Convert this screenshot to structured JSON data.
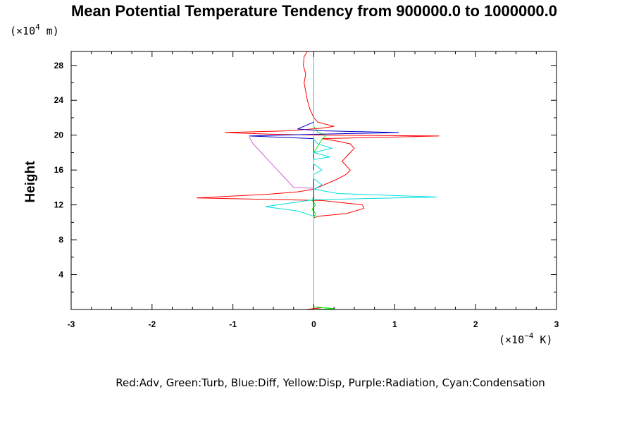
{
  "chart_data": {
    "type": "line",
    "title": "Mean Potential Temperature Tendency from 900000.0 to 1000000.0",
    "ylabel": "Height",
    "y_unit_prefix": "(×10",
    "y_unit_exp": "4",
    "y_unit_suffix": " m)",
    "x_unit_prefix": "(×10",
    "x_unit_exp": "−4",
    "x_unit_suffix": " K)",
    "xlim": [
      -3,
      3
    ],
    "ylim": [
      0,
      29.6
    ],
    "x_ticks": [
      -3,
      -2,
      -1,
      0,
      1,
      2,
      3
    ],
    "x_tick_labels": [
      "-3",
      "-2",
      "-1",
      "0",
      "1",
      "2",
      "3"
    ],
    "y_ticks": [
      4,
      8,
      12,
      16,
      20,
      24,
      28
    ],
    "y_tick_labels": [
      "4",
      "8",
      "12",
      "16",
      "20",
      "24",
      "28"
    ],
    "grid": false,
    "legend_text": "Red:Adv, Green:Turb, Blue:Diff, Yellow:Disp, Purple:Radiation, Cyan:Condensation",
    "series": [
      {
        "name": "Adv",
        "color": "#ff0000",
        "points": [
          [
            -0.1,
            0.0
          ],
          [
            0.1,
            0.2
          ],
          [
            0.0,
            0.3
          ],
          [
            0.0,
            10.5
          ],
          [
            0.05,
            10.7
          ],
          [
            0.4,
            11.0
          ],
          [
            0.62,
            11.6
          ],
          [
            0.6,
            12.0
          ],
          [
            0.3,
            12.3
          ],
          [
            0.1,
            12.5
          ],
          [
            -1.45,
            12.8
          ],
          [
            -0.6,
            13.2
          ],
          [
            -0.2,
            13.5
          ],
          [
            0.0,
            13.8
          ],
          [
            0.1,
            14.2
          ],
          [
            0.2,
            14.6
          ],
          [
            0.3,
            15.0
          ],
          [
            0.4,
            15.5
          ],
          [
            0.45,
            16.0
          ],
          [
            0.4,
            16.5
          ],
          [
            0.35,
            17.0
          ],
          [
            0.4,
            17.5
          ],
          [
            0.45,
            18.0
          ],
          [
            0.5,
            18.5
          ],
          [
            0.45,
            19.0
          ],
          [
            0.3,
            19.3
          ],
          [
            0.1,
            19.6
          ],
          [
            1.55,
            19.9
          ],
          [
            0.2,
            20.0
          ],
          [
            -0.5,
            20.1
          ],
          [
            -1.1,
            20.3
          ],
          [
            -0.3,
            20.5
          ],
          [
            0.1,
            20.8
          ],
          [
            0.25,
            21.0
          ],
          [
            0.05,
            21.5
          ],
          [
            0.0,
            22.0
          ],
          [
            -0.05,
            23.0
          ],
          [
            -0.08,
            24.0
          ],
          [
            -0.1,
            25.0
          ],
          [
            -0.12,
            26.0
          ],
          [
            -0.1,
            27.0
          ],
          [
            -0.13,
            28.0
          ],
          [
            -0.12,
            29.0
          ],
          [
            -0.08,
            29.6
          ]
        ]
      },
      {
        "name": "Turb",
        "color": "#00ee00",
        "points": [
          [
            0.0,
            0.0
          ],
          [
            0.25,
            0.1
          ],
          [
            0.0,
            0.3
          ],
          [
            0.0,
            10.5
          ],
          [
            0.02,
            11.0
          ],
          [
            -0.02,
            11.5
          ],
          [
            0.02,
            12.0
          ],
          [
            -0.02,
            12.5
          ],
          [
            0.0,
            13.0
          ],
          [
            0.0,
            18.0
          ],
          [
            0.1,
            19.5
          ],
          [
            0.15,
            20.0
          ],
          [
            0.05,
            20.3
          ],
          [
            0.0,
            21.0
          ]
        ]
      },
      {
        "name": "Diff",
        "color": "#0000cc",
        "points": [
          [
            0.0,
            10.5
          ],
          [
            0.0,
            19.6
          ],
          [
            -0.8,
            19.9
          ],
          [
            0.0,
            20.1
          ],
          [
            1.05,
            20.3
          ],
          [
            0.1,
            20.5
          ],
          [
            -0.2,
            20.7
          ],
          [
            0.0,
            21.5
          ],
          [
            0.0,
            24.0
          ]
        ]
      },
      {
        "name": "Disp",
        "color": "#e6e600",
        "points": [
          [
            0.0,
            15.0
          ],
          [
            0.0,
            16.0
          ]
        ]
      },
      {
        "name": "Radiation",
        "color": "#cc66cc",
        "points": [
          [
            0.0,
            13.9
          ],
          [
            -0.25,
            14.0
          ],
          [
            -0.35,
            15.0
          ],
          [
            -0.45,
            16.0
          ],
          [
            -0.55,
            17.0
          ],
          [
            -0.65,
            18.0
          ],
          [
            -0.75,
            19.0
          ],
          [
            -0.8,
            19.8
          ]
        ]
      },
      {
        "name": "Condensation",
        "color": "#00dddd",
        "points": [
          [
            0.0,
            0.0
          ],
          [
            0.0,
            10.7
          ],
          [
            -0.2,
            11.3
          ],
          [
            -0.6,
            11.8
          ],
          [
            -0.3,
            12.2
          ],
          [
            0.0,
            12.6
          ],
          [
            1.52,
            12.9
          ],
          [
            0.3,
            13.3
          ],
          [
            0.0,
            13.8
          ],
          [
            0.1,
            14.3
          ],
          [
            0.0,
            15.0
          ],
          [
            0.0,
            15.5
          ],
          [
            0.1,
            16.0
          ],
          [
            0.0,
            16.7
          ],
          [
            0.0,
            17.2
          ],
          [
            0.2,
            17.5
          ],
          [
            0.0,
            18.0
          ],
          [
            0.22,
            18.5
          ],
          [
            0.05,
            19.0
          ],
          [
            0.0,
            19.5
          ],
          [
            0.0,
            29.6
          ]
        ]
      }
    ]
  }
}
